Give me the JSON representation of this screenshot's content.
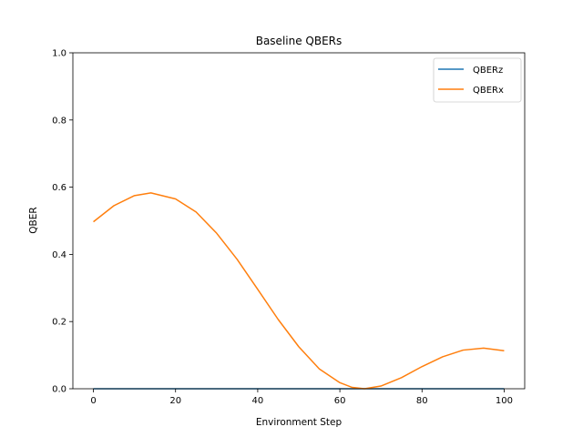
{
  "chart_data": {
    "type": "line",
    "title": "Baseline QBERs",
    "xlabel": "Environment Step",
    "ylabel": "QBER",
    "xlim": [
      -5,
      105
    ],
    "ylim": [
      0,
      1.0
    ],
    "xticks": [
      0,
      20,
      40,
      60,
      80,
      100
    ],
    "yticks": [
      0.0,
      0.2,
      0.4,
      0.6,
      0.8,
      1.0
    ],
    "xtick_labels": [
      "0",
      "20",
      "40",
      "60",
      "80",
      "100"
    ],
    "ytick_labels": [
      "0.0",
      "0.2",
      "0.4",
      "0.6",
      "0.8",
      "1.0"
    ],
    "grid": false,
    "legend_position": "top-right",
    "series": [
      {
        "name": "QBERz",
        "color": "#1f77b4",
        "x": [
          0,
          10,
          20,
          30,
          40,
          50,
          60,
          70,
          80,
          90,
          100
        ],
        "y": [
          0,
          0,
          0,
          0,
          0,
          0,
          0,
          0,
          0,
          0,
          0
        ]
      },
      {
        "name": "QBERx",
        "color": "#ff7f0e",
        "x": [
          0,
          5,
          10,
          14,
          20,
          25,
          30,
          35,
          40,
          45,
          50,
          55,
          60,
          63,
          66,
          70,
          75,
          80,
          85,
          90,
          95,
          100
        ],
        "y": [
          0.497,
          0.545,
          0.575,
          0.583,
          0.565,
          0.526,
          0.463,
          0.385,
          0.296,
          0.206,
          0.125,
          0.059,
          0.018,
          0.004,
          0.0,
          0.008,
          0.033,
          0.066,
          0.095,
          0.115,
          0.121,
          0.113
        ]
      }
    ]
  }
}
